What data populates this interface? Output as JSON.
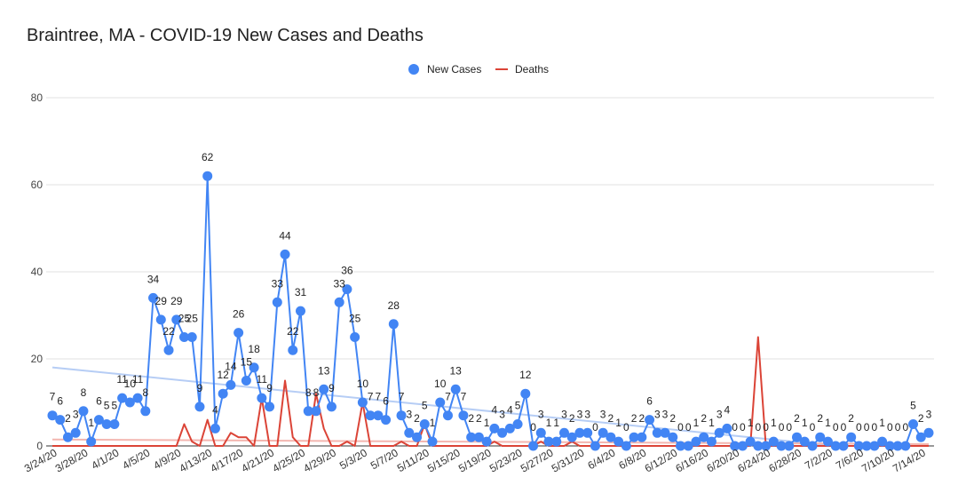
{
  "chart_data": {
    "type": "line",
    "title": "Braintree, MA - COVID-19 New Cases and Deaths",
    "xlabel": "",
    "ylabel": "",
    "ylim": [
      0,
      80
    ],
    "yticks": [
      "0",
      "20",
      "40",
      "60",
      "80"
    ],
    "legend_position": "top-center",
    "tick_labels": [
      "3/24/20",
      "3/28/20",
      "4/1/20",
      "4/5/20",
      "4/9/20",
      "4/13/20",
      "4/17/20",
      "4/21/20",
      "4/25/20",
      "4/29/20",
      "5/3/20",
      "5/7/20",
      "5/11/20",
      "5/15/20",
      "5/19/20",
      "5/23/20",
      "5/27/20",
      "5/31/20",
      "6/4/20",
      "6/8/20",
      "6/12/20",
      "6/16/20",
      "6/20/20",
      "6/24/20",
      "6/28/20",
      "7/2/20",
      "7/6/20",
      "7/10/20",
      "7/14/20"
    ],
    "series": [
      {
        "name": "New Cases",
        "color": "#4285f4",
        "trendline_color": "#b6cdf5",
        "values": [
          7,
          6,
          2,
          3,
          8,
          1,
          6,
          5,
          5,
          11,
          10,
          11,
          8,
          34,
          29,
          22,
          29,
          25,
          25,
          9,
          62,
          4,
          12,
          14,
          26,
          15,
          18,
          11,
          9,
          33,
          44,
          22,
          31,
          8,
          8,
          13,
          9,
          33,
          36,
          25,
          10,
          7,
          7,
          6,
          28,
          7,
          3,
          2,
          5,
          1,
          10,
          7,
          13,
          7,
          2,
          2,
          1,
          4,
          3,
          4,
          5,
          12,
          0,
          3,
          1,
          1,
          3,
          2,
          3,
          3,
          0,
          3,
          2,
          1,
          0,
          2,
          2,
          6,
          3,
          3,
          2,
          0,
          0,
          1,
          2,
          1,
          3,
          4,
          0,
          0,
          1,
          0,
          0,
          1,
          0,
          0,
          2,
          1,
          0,
          2,
          1,
          0,
          0,
          2,
          0,
          0,
          0,
          1,
          0,
          0,
          0,
          5,
          2,
          3
        ]
      },
      {
        "name": "Deaths",
        "color": "#db4437",
        "trendline_color": "#f3b6b0",
        "values": [
          0,
          0,
          0,
          0,
          0,
          0,
          0,
          0,
          0,
          0,
          0,
          0,
          0,
          0,
          0,
          0,
          0,
          5,
          1,
          0,
          6,
          0,
          0,
          3,
          2,
          2,
          0,
          11,
          0,
          0,
          15,
          2,
          0,
          0,
          12,
          4,
          0,
          0,
          1,
          0,
          10,
          0,
          0,
          0,
          0,
          1,
          0,
          0,
          5,
          0,
          0,
          0,
          0,
          0,
          0,
          0,
          0,
          1,
          0,
          0,
          0,
          0,
          0,
          1,
          0,
          0,
          0,
          1,
          0,
          0,
          0,
          0,
          0,
          0,
          0,
          0,
          0,
          0,
          0,
          0,
          0,
          0,
          0,
          0,
          0,
          0,
          0,
          0,
          0,
          0,
          0,
          25,
          0,
          0,
          0,
          0,
          0,
          0,
          0,
          0,
          0,
          0,
          0,
          0,
          0,
          0,
          0,
          0,
          0,
          0,
          0,
          0,
          0,
          0
        ]
      }
    ]
  }
}
